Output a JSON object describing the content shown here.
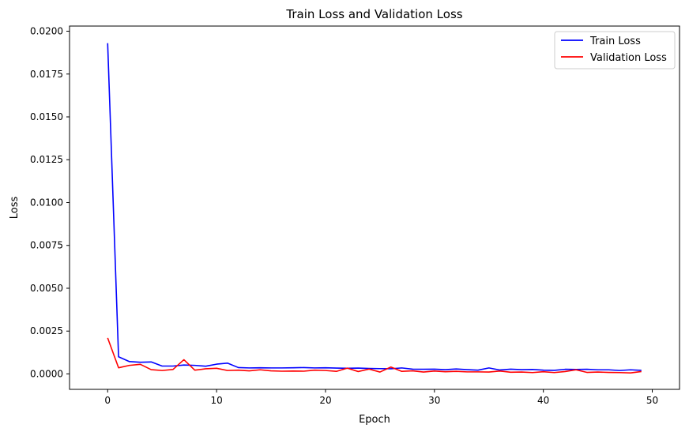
{
  "chart_data": {
    "type": "line",
    "title": "Train Loss and Validation Loss",
    "xlabel": "Epoch",
    "ylabel": "Loss",
    "xlim": [
      -3.5,
      52.5
    ],
    "ylim": [
      -0.0009,
      0.0203
    ],
    "xticks": [
      0,
      10,
      20,
      30,
      40,
      50
    ],
    "xtick_labels": [
      "0",
      "10",
      "20",
      "30",
      "40",
      "50"
    ],
    "yticks": [
      0,
      0.0025,
      0.005,
      0.0075,
      0.01,
      0.0125,
      0.015,
      0.0175,
      0.02
    ],
    "ytick_labels": [
      "0.0000",
      "0.0025",
      "0.0050",
      "0.0075",
      "0.0100",
      "0.0125",
      "0.0150",
      "0.0175",
      "0.0200"
    ],
    "grid": false,
    "legend": {
      "position": "top-right",
      "labels": [
        "Train Loss",
        "Validation Loss"
      ]
    },
    "x": [
      0,
      1,
      2,
      3,
      4,
      5,
      6,
      7,
      8,
      9,
      10,
      11,
      12,
      13,
      14,
      15,
      16,
      17,
      18,
      19,
      20,
      21,
      22,
      23,
      24,
      25,
      26,
      27,
      28,
      29,
      30,
      31,
      32,
      33,
      34,
      35,
      36,
      37,
      38,
      39,
      40,
      41,
      42,
      43,
      44,
      45,
      46,
      47,
      48,
      49
    ],
    "series": [
      {
        "name": "Train Loss",
        "color": "#0000ff",
        "values": [
          0.0193,
          0.001,
          0.00072,
          0.00068,
          0.0007,
          0.00046,
          0.00046,
          0.00052,
          0.0005,
          0.00045,
          0.00057,
          0.00063,
          0.00037,
          0.00035,
          0.00036,
          0.00035,
          0.00035,
          0.00036,
          0.00037,
          0.00035,
          0.00036,
          0.00034,
          0.00033,
          0.00034,
          0.00032,
          0.00031,
          0.0003,
          0.00035,
          0.00028,
          0.00027,
          0.00028,
          0.00025,
          0.00029,
          0.00025,
          0.00022,
          0.00035,
          0.00023,
          0.00028,
          0.00025,
          0.00026,
          0.00022,
          0.00021,
          0.00027,
          0.00026,
          0.00027,
          0.00024,
          0.00024,
          0.0002,
          0.00024,
          0.00021
        ]
      },
      {
        "name": "Validation Loss",
        "color": "#ff0000",
        "values": [
          0.0021,
          0.00036,
          0.0005,
          0.00056,
          0.00025,
          0.0002,
          0.00026,
          0.00083,
          0.00022,
          0.0003,
          0.00033,
          0.0002,
          0.00022,
          0.00018,
          0.00024,
          0.00018,
          0.00016,
          0.00017,
          0.00016,
          0.00022,
          0.0002,
          0.00015,
          0.00034,
          0.00014,
          0.00028,
          0.00011,
          0.0004,
          0.00015,
          0.00018,
          0.00011,
          0.00017,
          0.00013,
          0.00015,
          0.00012,
          0.00012,
          0.00011,
          0.00017,
          0.0001,
          0.00011,
          8e-05,
          0.00013,
          8e-05,
          0.00014,
          0.00024,
          9e-05,
          0.00011,
          9e-05,
          8e-05,
          6e-05,
          0.00014
        ]
      }
    ]
  }
}
